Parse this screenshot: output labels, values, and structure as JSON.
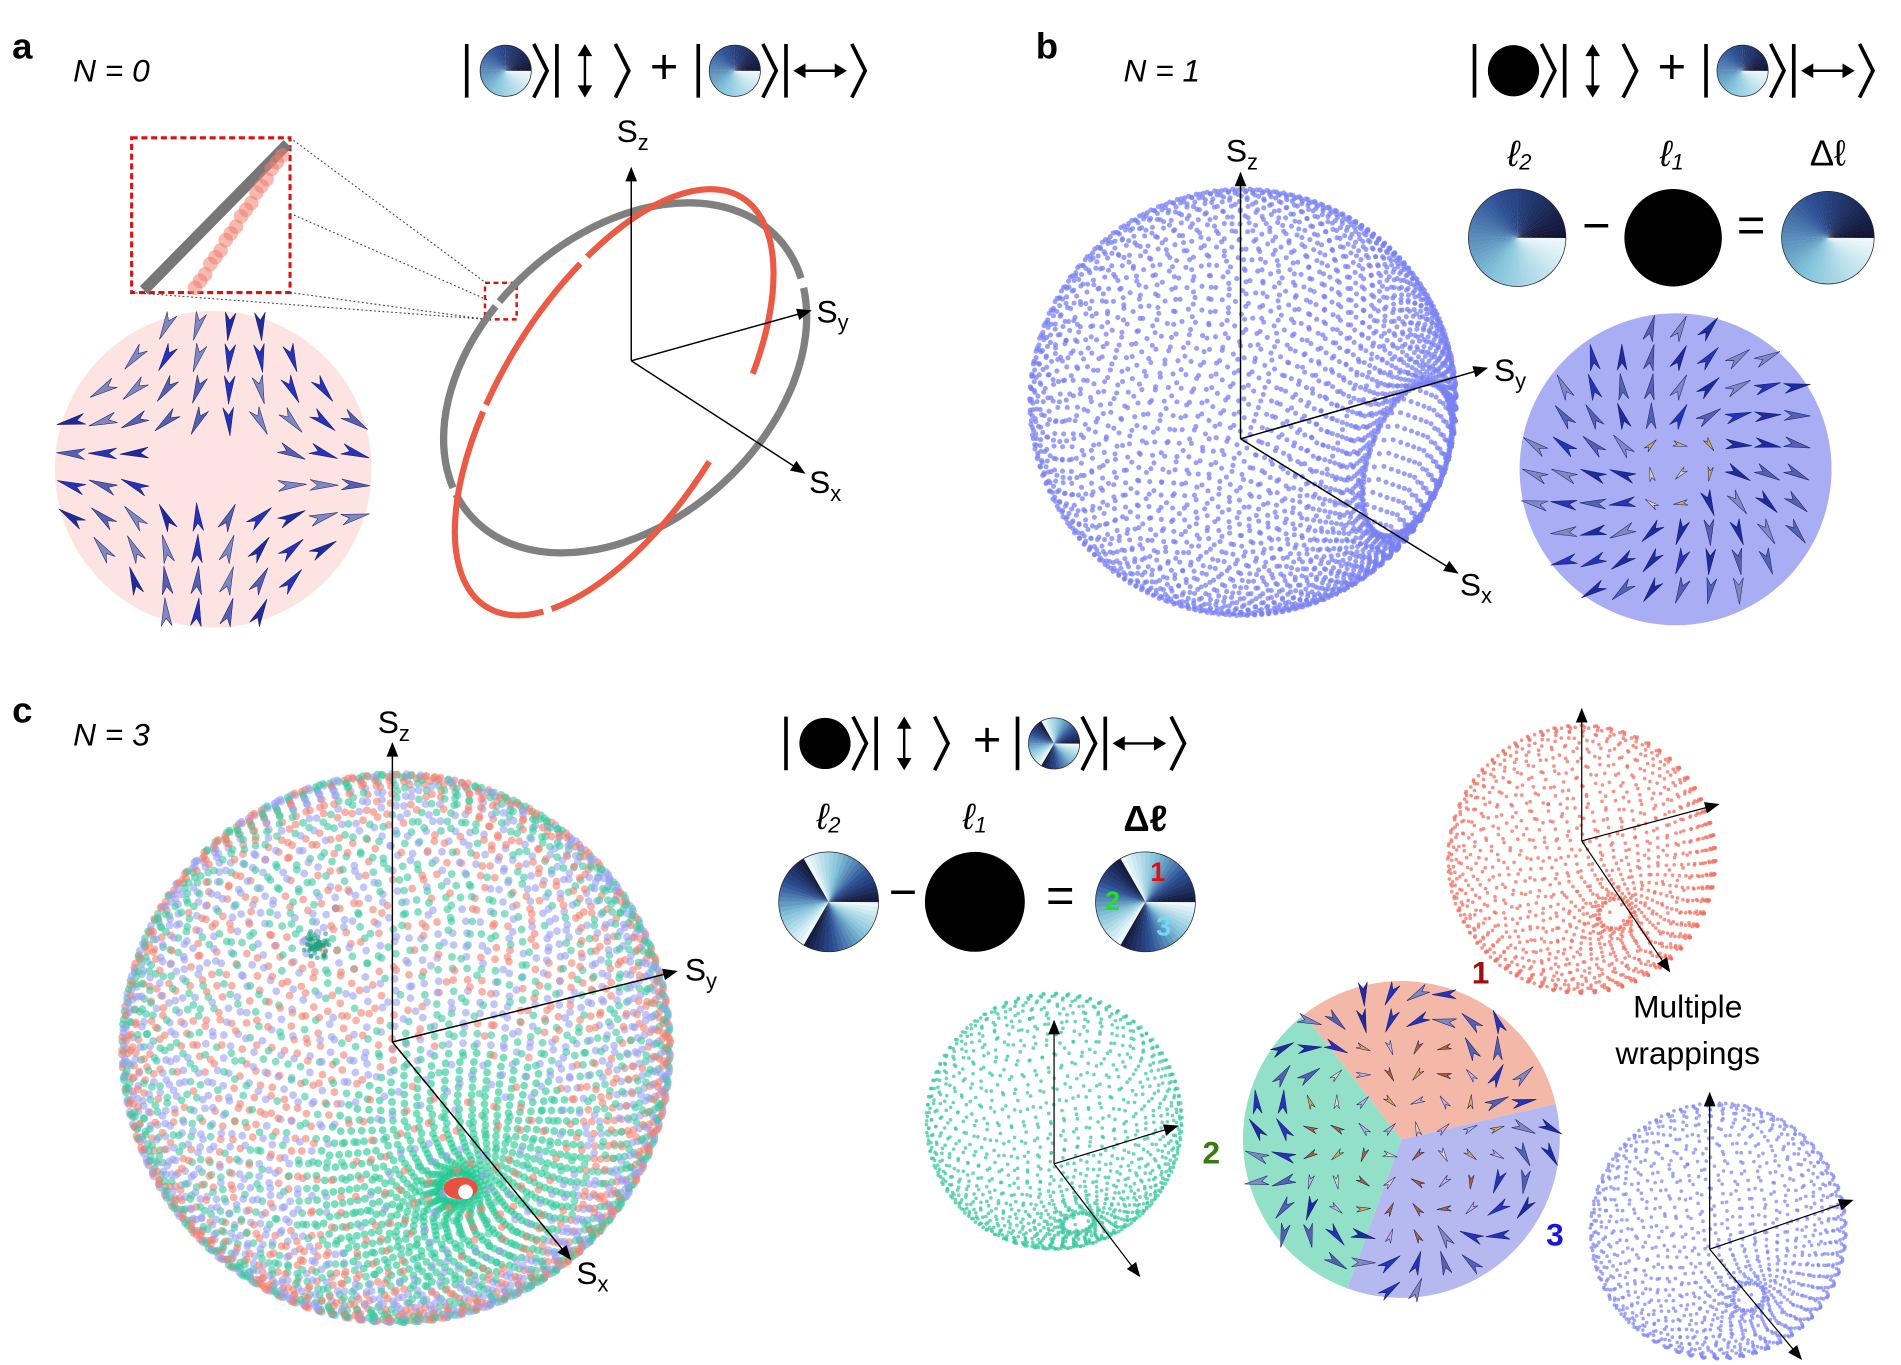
{
  "panels": [
    {
      "label": "a",
      "n_text": "N = 0",
      "plus": "+",
      "axes": {
        "z": {
          "symbol": "S",
          "sub": "z"
        },
        "y": {
          "symbol": "S",
          "sub": "y"
        },
        "x": {
          "symbol": "S",
          "sub": "x"
        }
      }
    },
    {
      "label": "b",
      "n_text": "N = 1",
      "plus": "+",
      "axes": {
        "z": {
          "symbol": "S",
          "sub": "z"
        },
        "y": {
          "symbol": "S",
          "sub": "y"
        },
        "x": {
          "symbol": "S",
          "sub": "x"
        }
      },
      "difference": {
        "l2": {
          "symbol": "ℓ",
          "sub": "2"
        },
        "minus": "−",
        "l1": {
          "symbol": "ℓ",
          "sub": "1"
        },
        "equals": "=",
        "result": "Δℓ"
      }
    },
    {
      "label": "c",
      "n_text": "N = 3",
      "plus": "+",
      "axes": {
        "z": {
          "symbol": "S",
          "sub": "z"
        },
        "y": {
          "symbol": "S",
          "sub": "y"
        },
        "x": {
          "symbol": "S",
          "sub": "x"
        }
      },
      "difference": {
        "l2": {
          "symbol": "ℓ",
          "sub": "2"
        },
        "minus": "−",
        "l1": {
          "symbol": "ℓ",
          "sub": "1"
        },
        "equals": "=",
        "result": "Δℓ",
        "regions": [
          "1",
          "2",
          "3"
        ]
      },
      "wrapping_labels": [
        "1",
        "2",
        "3"
      ],
      "note": [
        "Multiple",
        "wrappings"
      ]
    }
  ]
}
